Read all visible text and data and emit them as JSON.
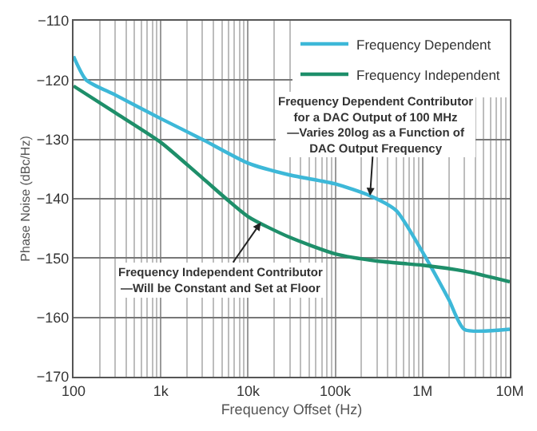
{
  "chart_data": {
    "type": "line",
    "xlabel": "Frequency Offset (Hz)",
    "ylabel": "Phase Noise (dBc/Hz)",
    "log": "x",
    "grid": true,
    "legend": "top right",
    "marker": "none",
    "line_style": "solid",
    "xlim": [
      100,
      10000000
    ],
    "ylim": [
      -170,
      -110
    ],
    "xticks": [
      {
        "value": 100,
        "label": "100"
      },
      {
        "value": 1000,
        "label": "1k"
      },
      {
        "value": 10000,
        "label": "10k"
      },
      {
        "value": 100000,
        "label": "100k"
      },
      {
        "value": 1000000,
        "label": "1M"
      },
      {
        "value": 10000000,
        "label": "10M"
      }
    ],
    "yticks": [
      -170,
      -160,
      -150,
      -140,
      -130,
      -120,
      -110
    ],
    "series": [
      {
        "name": "Frequency Dependent",
        "color": "#3db8d8",
        "x": [
          100,
          140,
          300,
          1000,
          3000,
          10000,
          30000,
          100000,
          250000,
          500000,
          1000000,
          2000000,
          3000000,
          10000000
        ],
        "values": [
          -116,
          -120,
          -122.5,
          -126.5,
          -130,
          -134,
          -136,
          -137.5,
          -139.5,
          -142,
          -149,
          -157,
          -162,
          -162
        ]
      },
      {
        "name": "Frequency Independent",
        "color": "#1e8f6a",
        "x": [
          100,
          300,
          1000,
          3000,
          10000,
          30000,
          100000,
          300000,
          1000000,
          3000000,
          10000000
        ],
        "values": [
          -121,
          -125.5,
          -130.5,
          -136.5,
          -143,
          -146.5,
          -149.3,
          -150.5,
          -151.2,
          -152.2,
          -154
        ]
      }
    ],
    "annotations": [
      {
        "text": "Frequency Dependent Contributor\nfor a DAC Output of 100 MHz\n—Varies 20log as a Function of\nDAC Output Frequency",
        "x": 250000,
        "y": -139.5
      },
      {
        "text": "Frequency Independent Contributor\n—Will be Constant and Set at Floor",
        "x": 14000,
        "y": -144
      }
    ]
  }
}
